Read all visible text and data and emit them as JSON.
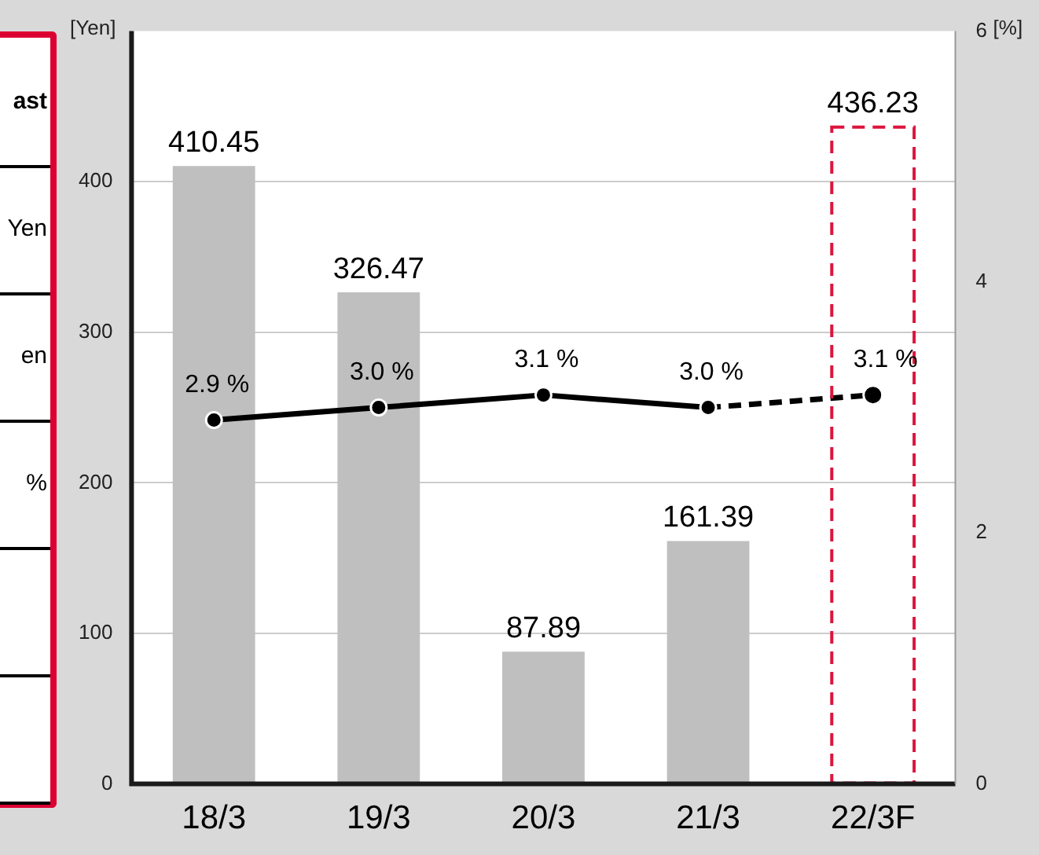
{
  "chart_data": {
    "type": "bar",
    "categories": [
      "18/3",
      "19/3",
      "20/3",
      "21/3",
      "22/3F"
    ],
    "series": [
      {
        "color": "#bfbfbf",
        "values": [
          410.45,
          326.47,
          87.89,
          161.39,
          null
        ],
        "value_labels": [
          "410.45",
          "326.47",
          "87.89",
          "161.39",
          null
        ]
      },
      {
        "color": "#dc143c",
        "line_style": "dashed",
        "values": [
          null,
          null,
          null,
          null,
          436.23
        ],
        "value_labels": [
          null,
          null,
          null,
          null,
          "436.23"
        ]
      },
      {
        "type": "line",
        "axis": "y2",
        "color": "#000000",
        "line_style": "solid",
        "values": [
          2.9,
          3.0,
          3.1,
          3.0,
          null
        ],
        "value_labels": [
          "2.9 %",
          "3.0 %",
          "3.1 %",
          "3.0 %",
          null
        ]
      },
      {
        "type": "line",
        "axis": "y2",
        "color": "#000000",
        "line_style": "dashed",
        "values": [
          null,
          null,
          null,
          3.0,
          3.1
        ],
        "value_labels": [
          null,
          null,
          null,
          null,
          "3.1 %"
        ]
      }
    ],
    "ylabel": "[Yen]",
    "y2label": "[%]",
    "ylim": [
      0,
      500
    ],
    "yticks": [
      0,
      100,
      200,
      300,
      400
    ],
    "y2lim": [
      0,
      6
    ],
    "y2ticks": [
      0,
      2,
      4,
      6
    ],
    "grid": "y",
    "legend": false,
    "marker": "circle",
    "annotations": [
      "ast",
      "Yen",
      "en",
      "%"
    ]
  }
}
